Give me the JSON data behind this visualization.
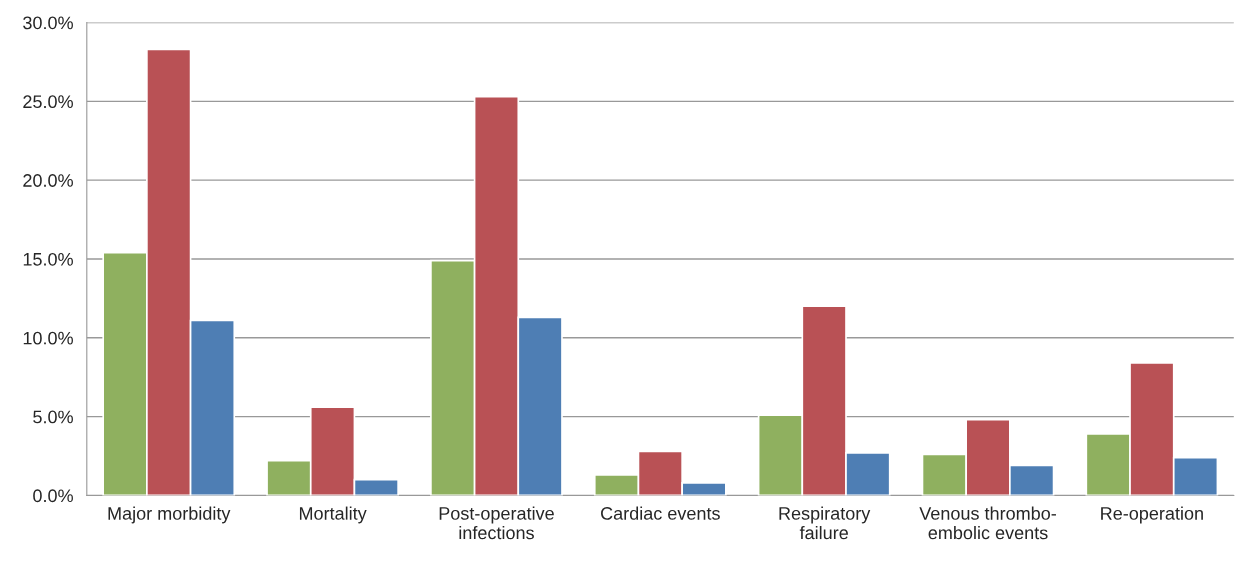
{
  "chart_data": {
    "type": "bar",
    "categories": [
      "Major morbidity",
      "Mortality",
      "Post-operative\ninfections",
      "Cardiac events",
      "Respiratory\nfailure",
      "Venous thrombo-\nembolic events",
      "Re-operation"
    ],
    "series": [
      {
        "color": "#8fb05f",
        "values": [
          15.4,
          2.2,
          14.9,
          1.3,
          5.1,
          2.6,
          3.9
        ]
      },
      {
        "color": "#b95155",
        "values": [
          28.3,
          5.6,
          25.3,
          2.8,
          12.0,
          4.8,
          8.4
        ]
      },
      {
        "color": "#4e7eb4",
        "values": [
          11.1,
          1.0,
          11.3,
          0.8,
          2.7,
          1.9,
          2.4
        ]
      }
    ],
    "ylim": [
      0,
      30
    ],
    "yticks": [
      {
        "value": 0,
        "label": "0.0%"
      },
      {
        "value": 5,
        "label": "5.0%"
      },
      {
        "value": 10,
        "label": "10.0%"
      },
      {
        "value": 15,
        "label": "15.0%"
      },
      {
        "value": 20,
        "label": "20.0%"
      },
      {
        "value": 25,
        "label": "25.0%"
      },
      {
        "value": 30,
        "label": "30.0%"
      }
    ],
    "grid": "y"
  }
}
